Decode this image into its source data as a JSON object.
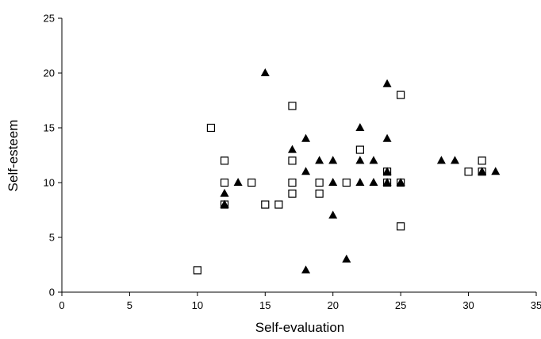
{
  "chart_data": {
    "type": "scatter",
    "title": "",
    "xlabel": "Self-evaluation",
    "ylabel": "Self-esteem",
    "xlim": [
      0,
      35
    ],
    "ylim": [
      0,
      25
    ],
    "x_ticks": [
      0,
      5,
      10,
      15,
      20,
      25,
      30,
      35
    ],
    "y_ticks": [
      0,
      5,
      10,
      15,
      20,
      25
    ],
    "grid": false,
    "legend": "none",
    "series": [
      {
        "marker": "hollow-square",
        "color": "#000000",
        "points": [
          [
            10,
            2
          ],
          [
            11,
            15
          ],
          [
            12,
            12
          ],
          [
            12,
            10
          ],
          [
            12,
            8
          ],
          [
            14,
            10
          ],
          [
            15,
            8
          ],
          [
            16,
            8
          ],
          [
            17,
            17
          ],
          [
            17,
            12
          ],
          [
            17,
            10
          ],
          [
            17,
            9
          ],
          [
            19,
            10
          ],
          [
            19,
            9
          ],
          [
            21,
            10
          ],
          [
            22,
            13
          ],
          [
            24,
            11
          ],
          [
            24,
            10
          ],
          [
            25,
            18
          ],
          [
            25,
            10
          ],
          [
            25,
            6
          ],
          [
            30,
            11
          ],
          [
            31,
            12
          ],
          [
            31,
            11
          ]
        ]
      },
      {
        "marker": "filled-triangle",
        "color": "#000000",
        "points": [
          [
            12,
            9
          ],
          [
            12,
            8
          ],
          [
            13,
            10
          ],
          [
            15,
            20
          ],
          [
            17,
            13
          ],
          [
            18,
            14
          ],
          [
            18,
            11
          ],
          [
            18,
            2
          ],
          [
            19,
            12
          ],
          [
            20,
            12
          ],
          [
            20,
            10
          ],
          [
            20,
            7
          ],
          [
            21,
            3
          ],
          [
            22,
            15
          ],
          [
            22,
            12
          ],
          [
            22,
            10
          ],
          [
            23,
            12
          ],
          [
            23,
            10
          ],
          [
            24,
            19
          ],
          [
            24,
            14
          ],
          [
            24,
            11
          ],
          [
            24,
            10
          ],
          [
            25,
            10
          ],
          [
            28,
            12
          ],
          [
            29,
            12
          ],
          [
            31,
            11
          ],
          [
            32,
            11
          ]
        ]
      }
    ]
  }
}
